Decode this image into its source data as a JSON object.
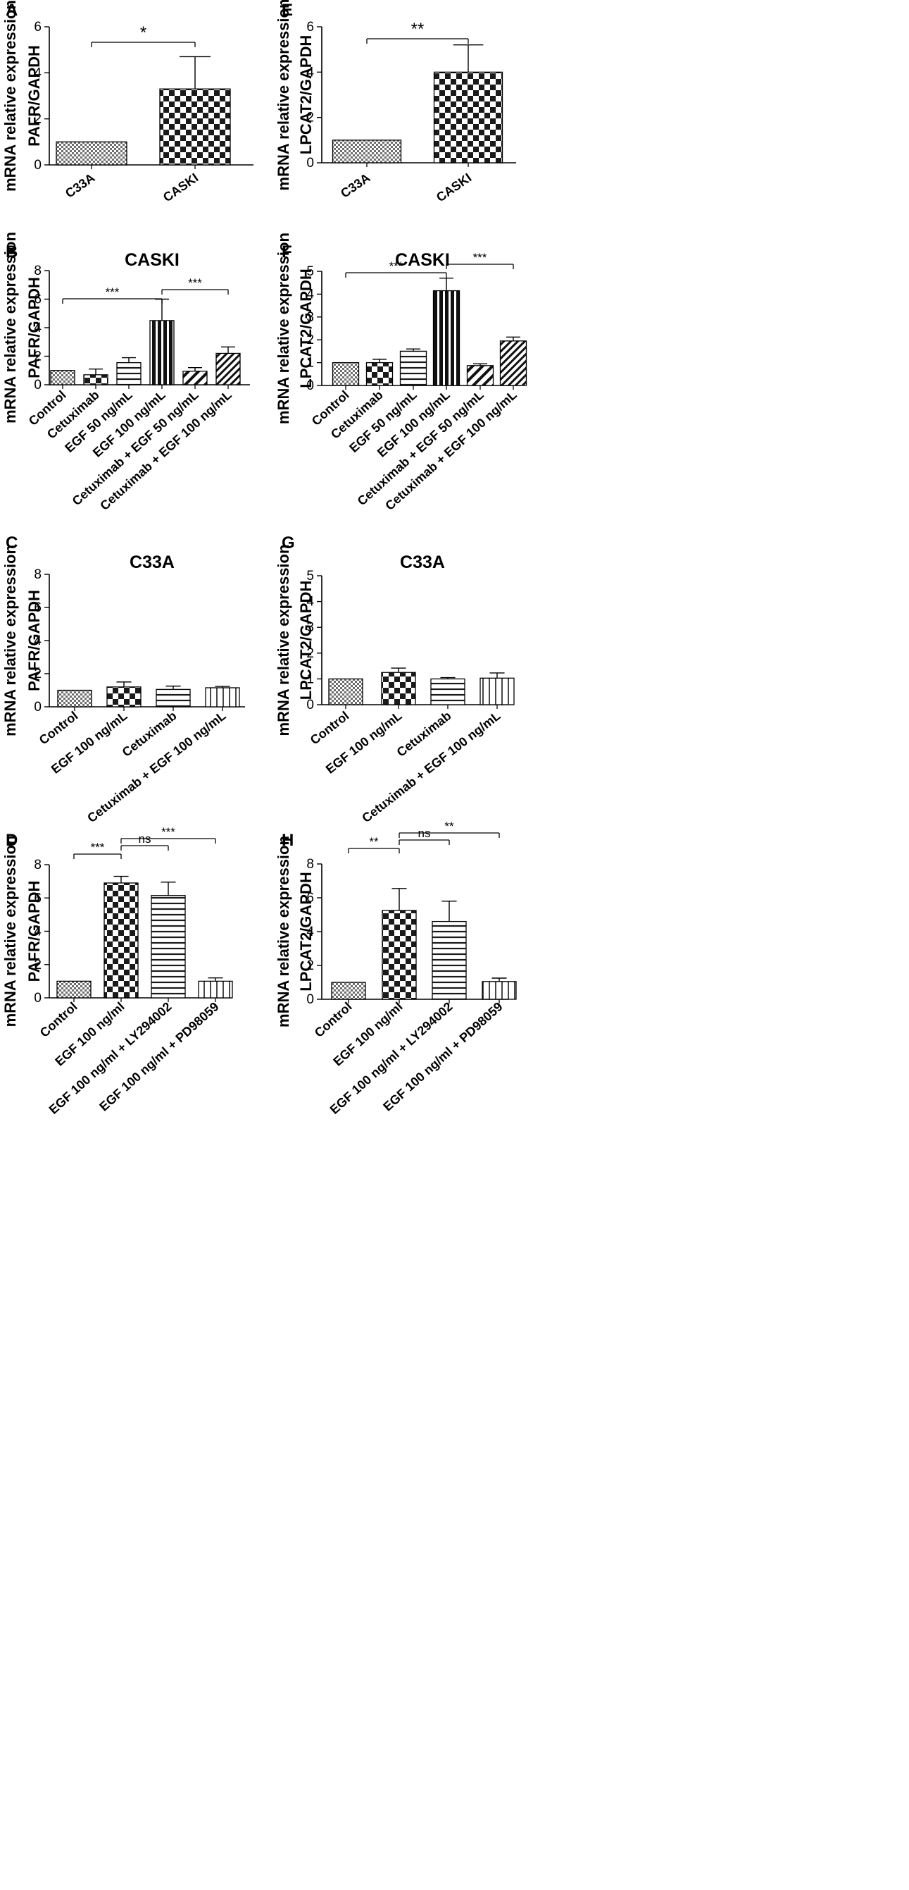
{
  "chart_data": [
    {
      "panel": "A",
      "type": "bar",
      "title": "",
      "ylabel": [
        "mRNA relative expression",
        "PAFR/GAPDH"
      ],
      "ylim": [
        0,
        6
      ],
      "yticks": [
        0,
        2,
        4,
        6
      ],
      "categories": [
        "C33A",
        "CASKI"
      ],
      "values": [
        1.0,
        3.3
      ],
      "errors": [
        0,
        1.4
      ],
      "patterns": [
        "finecheck",
        "check"
      ],
      "significance": [
        {
          "from": 0,
          "to": 1,
          "label": "*"
        }
      ]
    },
    {
      "panel": "E",
      "type": "bar",
      "title": "",
      "ylabel": [
        "mRNA relative expression",
        "LPCAT2/GAPDH"
      ],
      "ylim": [
        0,
        6
      ],
      "yticks": [
        0,
        2,
        4,
        6
      ],
      "categories": [
        "C33A",
        "CASKI"
      ],
      "values": [
        1.0,
        4.0
      ],
      "errors": [
        0,
        1.2
      ],
      "patterns": [
        "finecheck",
        "check"
      ],
      "significance": [
        {
          "from": 0,
          "to": 1,
          "label": "**"
        }
      ]
    },
    {
      "panel": "B",
      "type": "bar",
      "title": "CASKI",
      "ylabel": [
        "mRNA relative expression",
        "PAFR/GAPDH"
      ],
      "ylim": [
        0,
        8
      ],
      "yticks": [
        0,
        2,
        4,
        6,
        8
      ],
      "categories": [
        "Control",
        "Cetuximab",
        "EGF 50 ng/mL",
        "EGF 100 ng/mL",
        "Cetuximab + EGF 50 ng/mL",
        "Cetuximab + EGF 100 ng/mL"
      ],
      "values": [
        1.0,
        0.7,
        1.55,
        4.5,
        0.95,
        2.2
      ],
      "errors": [
        0,
        0.4,
        0.35,
        1.5,
        0.25,
        0.45
      ],
      "patterns": [
        "finecheck",
        "check",
        "hlines",
        "vbars",
        "diagdown",
        "diagdense"
      ],
      "significance": [
        {
          "from": 0,
          "to": 3,
          "label": "***"
        },
        {
          "from": 3,
          "to": 5,
          "label": "***"
        }
      ]
    },
    {
      "panel": "F",
      "type": "bar",
      "title": "CASKI",
      "ylabel": [
        "mRNA relative expression",
        "LPCAT2/GAPDH"
      ],
      "ylim": [
        0,
        5
      ],
      "yticks": [
        0,
        1,
        2,
        3,
        4,
        5
      ],
      "categories": [
        "Control",
        "Cetuximab",
        "EGF 50 ng/mL",
        "EGF 100 ng/mL",
        "Cetuximab + EGF 50 ng/mL",
        "Cetuximab + EGF 100 ng/mL"
      ],
      "values": [
        1.0,
        1.0,
        1.5,
        4.15,
        0.87,
        1.95
      ],
      "errors": [
        0,
        0.15,
        0.1,
        0.55,
        0.08,
        0.17
      ],
      "patterns": [
        "finecheck",
        "check",
        "hlines",
        "vbars",
        "diagdown",
        "diagdense"
      ],
      "significance": [
        {
          "from": 0,
          "to": 3,
          "label": "***"
        },
        {
          "from": 3,
          "to": 5,
          "label": "***"
        }
      ]
    },
    {
      "panel": "C",
      "type": "bar",
      "title": "C33A",
      "ylabel": [
        "mRNA relative expression",
        "PAFR/GAPDH"
      ],
      "ylim": [
        0,
        8
      ],
      "yticks": [
        0,
        2,
        4,
        6,
        8
      ],
      "categories": [
        "Control",
        "EGF 100 ng/mL",
        "Cetuximab",
        "Cetuximab + EGF 100 ng/mL"
      ],
      "values": [
        1.0,
        1.2,
        1.05,
        1.15
      ],
      "errors": [
        0,
        0.3,
        0.2,
        0.08
      ],
      "patterns": [
        "finecheck",
        "check",
        "hlines",
        "vlines"
      ],
      "significance": []
    },
    {
      "panel": "G",
      "type": "bar",
      "title": "C33A",
      "ylabel": [
        "mRNA relative expression",
        "LPCAT2/GAPDH"
      ],
      "ylim": [
        0,
        5
      ],
      "yticks": [
        0,
        1,
        2,
        3,
        4,
        5
      ],
      "categories": [
        "Control",
        "EGF 100 ng/mL",
        "Cetuximab",
        "Cetuximab + EGF 100 ng/mL"
      ],
      "values": [
        1.0,
        1.25,
        1.0,
        1.03
      ],
      "errors": [
        0,
        0.17,
        0.05,
        0.2
      ],
      "patterns": [
        "finecheck",
        "check",
        "hlines",
        "vlines"
      ],
      "significance": []
    },
    {
      "panel": "D",
      "type": "bar",
      "title": "",
      "ylabel": [
        "mRNA relative expression",
        "PAFR/GAPDH"
      ],
      "ylim": [
        0,
        8
      ],
      "yticks": [
        0,
        2,
        4,
        6,
        8
      ],
      "categories": [
        "Control",
        "EGF 100 ng/ml",
        "EGF 100 ng/ml + LY294002",
        "EGF 100 ng/ml + PD98059"
      ],
      "values": [
        1.0,
        6.9,
        6.15,
        1.0
      ],
      "errors": [
        0,
        0.4,
        0.8,
        0.2
      ],
      "patterns": [
        "finecheck",
        "check",
        "hlines",
        "vlines"
      ],
      "significance": [
        {
          "from": 0,
          "to": 1,
          "label": "***"
        },
        {
          "from": 1,
          "to": 2,
          "label": "ns"
        },
        {
          "from": 1,
          "to": 3,
          "label": "***"
        }
      ]
    },
    {
      "panel": "H",
      "type": "bar",
      "title": "",
      "ylabel": [
        "mRNA relative expression",
        "LPCAT2/GAPDH"
      ],
      "ylim": [
        0,
        8
      ],
      "yticks": [
        0,
        2,
        4,
        6,
        8
      ],
      "categories": [
        "Control",
        "EGF 100 ng/ml",
        "EGF 100 ng/ml + LY294002",
        "EGF 100 ng/ml + PD98059"
      ],
      "values": [
        1.0,
        5.25,
        4.6,
        1.05
      ],
      "errors": [
        0,
        1.3,
        1.2,
        0.2
      ],
      "patterns": [
        "finecheck",
        "check",
        "hlines",
        "vlines"
      ],
      "significance": [
        {
          "from": 0,
          "to": 1,
          "label": "**"
        },
        {
          "from": 1,
          "to": 2,
          "label": "ns"
        },
        {
          "from": 1,
          "to": 3,
          "label": "**"
        }
      ]
    }
  ]
}
